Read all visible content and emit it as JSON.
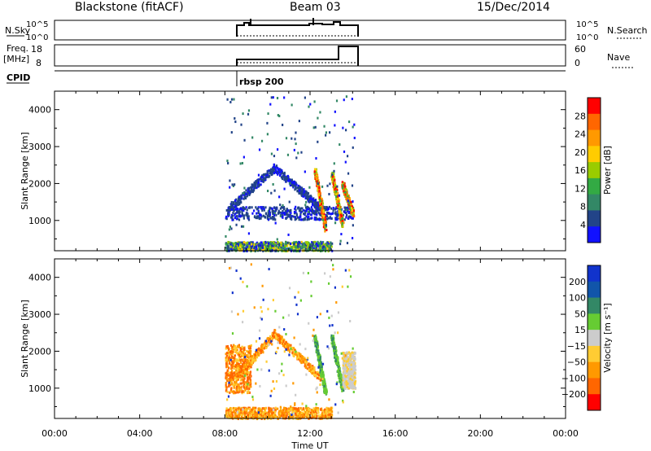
{
  "header": {
    "station": "Blackstone (fitACF)",
    "beam": "Beam 03",
    "date": "15/Dec/2014"
  },
  "info_panels": {
    "nsky_label": "N.Sky",
    "nsky_ticks": [
      "10^5",
      "10^0"
    ],
    "nsearch_label": "N.Search",
    "freq_label_line1": "Freq.",
    "freq_label_line2": "[MHz]",
    "freq_ticks": [
      "18",
      "8"
    ],
    "nave_label": "Nave",
    "nave_ticks": [
      "60",
      "0"
    ],
    "cpid_label": "CPID",
    "cpid_value": "rbsp 200"
  },
  "x_axis": {
    "label": "Time UT",
    "ticks": [
      "00:00",
      "04:00",
      "08:00",
      "12:00",
      "16:00",
      "20:00",
      "00:00"
    ]
  },
  "chart_data": [
    {
      "type": "heatmap",
      "title": "",
      "ylabel": "Slant Range [km]",
      "xlabel": "Time UT",
      "xlim_hours": [
        0,
        24
      ],
      "ylim_km": [
        180,
        4500
      ],
      "yticks": [
        "1000",
        "2000",
        "3000",
        "4000"
      ],
      "colorbar": {
        "label": "Power [dB]",
        "ticks": [
          "28",
          "24",
          "20",
          "16",
          "12",
          "8",
          "4"
        ],
        "colors": [
          "#ff0000",
          "#ff6600",
          "#ff9900",
          "#ffcc00",
          "#99cc00",
          "#33aa44",
          "#338866",
          "#224488",
          "#1111ff"
        ]
      },
      "data_window_hours": [
        8.0,
        14.1
      ],
      "features": [
        {
          "description": "arc",
          "start_h": 8.1,
          "peak_h": 10.3,
          "end_h": 12.6,
          "low_km": 1300,
          "high_km": 2450,
          "level": "low"
        },
        {
          "description": "band",
          "start_h": 8.0,
          "end_h": 14.0,
          "low_km": 1050,
          "high_km": 1400,
          "level": "low"
        },
        {
          "description": "streak",
          "h": 12.5,
          "low_km": 800,
          "high_km": 2400,
          "level": "high"
        },
        {
          "description": "streak",
          "h": 13.3,
          "low_km": 900,
          "high_km": 2300,
          "level": "high"
        },
        {
          "description": "streak",
          "h": 13.8,
          "low_km": 1200,
          "high_km": 2000,
          "level": "high"
        },
        {
          "description": "near-range",
          "start_h": 8.0,
          "end_h": 13.0,
          "low_km": 200,
          "high_km": 450,
          "level": "mixed"
        }
      ]
    },
    {
      "type": "heatmap",
      "title": "",
      "ylabel": "Slant Range [km]",
      "xlabel": "Time UT",
      "xlim_hours": [
        0,
        24
      ],
      "ylim_km": [
        180,
        4500
      ],
      "yticks": [
        "1000",
        "2000",
        "3000",
        "4000"
      ],
      "colorbar": {
        "label": "Velocity [m s⁻¹]",
        "ticks": [
          "200",
          "100",
          "50",
          "15",
          "−15",
          "−50",
          "−100",
          "−200"
        ],
        "colors": [
          "#1133cc",
          "#1155aa",
          "#338866",
          "#66cc33",
          "#cccccc",
          "#ffcc33",
          "#ff9900",
          "#ff6600",
          "#ff0000"
        ]
      },
      "data_window_hours": [
        8.0,
        14.1
      ],
      "features": [
        {
          "description": "arc",
          "start_h": 8.5,
          "peak_h": 10.3,
          "end_h": 12.5,
          "low_km": 1300,
          "high_km": 2500,
          "level": "negative"
        },
        {
          "description": "blob",
          "start_h": 8.0,
          "end_h": 9.2,
          "low_km": 900,
          "high_km": 2200,
          "level": "negative-strong"
        },
        {
          "description": "streak",
          "h": 12.5,
          "low_km": 900,
          "high_km": 2400,
          "level": "positive"
        },
        {
          "description": "streak",
          "h": 13.3,
          "low_km": 1000,
          "high_km": 2400,
          "level": "positive"
        },
        {
          "description": "band",
          "start_h": 13.5,
          "end_h": 14.1,
          "low_km": 1000,
          "high_km": 2000,
          "level": "zero"
        },
        {
          "description": "near-range",
          "start_h": 8.0,
          "end_h": 13.0,
          "low_km": 200,
          "high_km": 500,
          "level": "negative"
        }
      ]
    }
  ]
}
